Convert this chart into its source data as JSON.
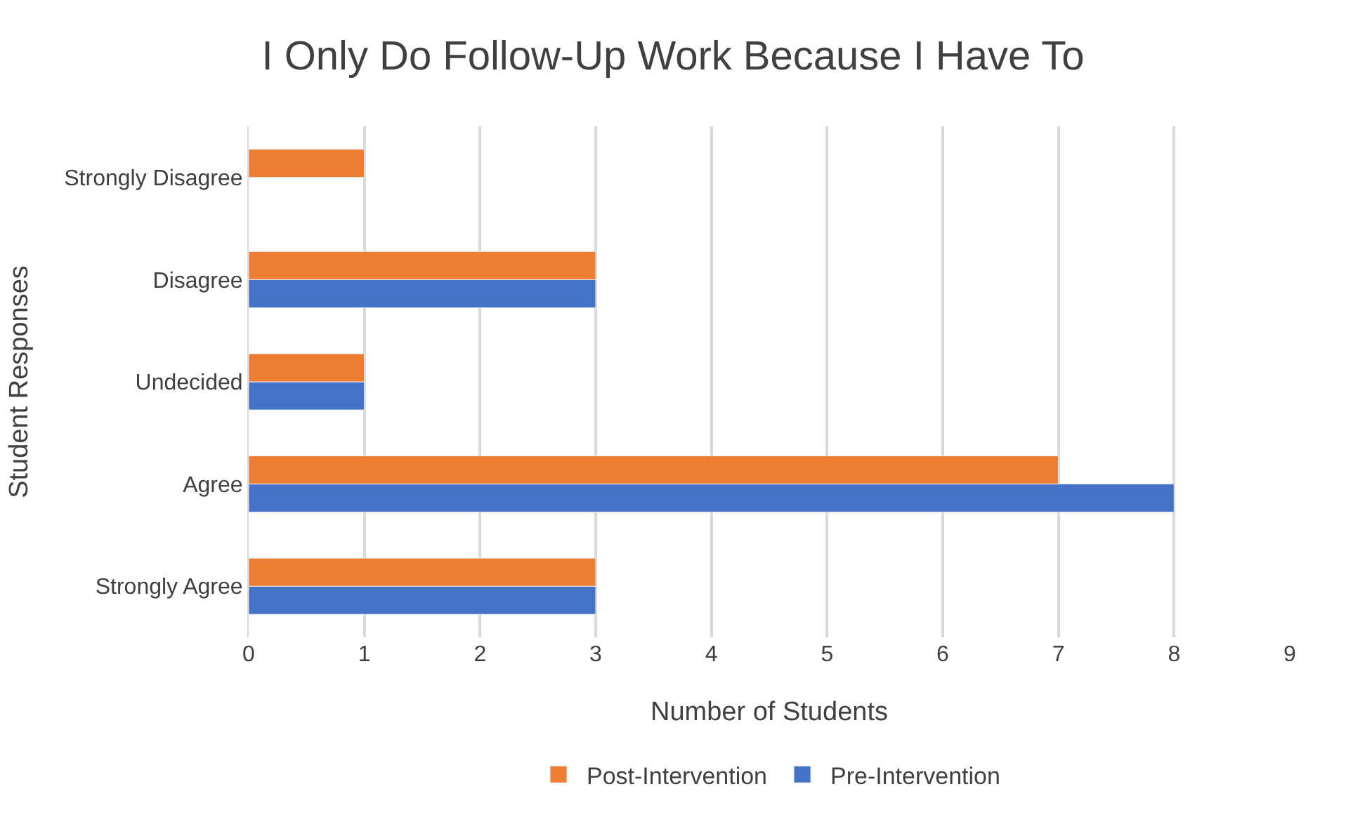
{
  "chart_data": {
    "type": "bar",
    "orientation": "horizontal",
    "title": "I Only Do Follow-Up Work Because I Have To",
    "xlabel": "Number of Students",
    "ylabel": "Student Responses",
    "categories": [
      "Strongly Disagree",
      "Disagree",
      "Undecided",
      "Agree",
      "Strongly Agree"
    ],
    "series": [
      {
        "name": "Post-Intervention",
        "color": "#ed7d31",
        "values": [
          1,
          3,
          1,
          7,
          3
        ]
      },
      {
        "name": "Pre-Intervention",
        "color": "#4472c4",
        "values": [
          null,
          3,
          1,
          8,
          3
        ]
      }
    ],
    "xlim": [
      0,
      9
    ],
    "xticks": [
      0,
      1,
      2,
      3,
      4,
      5,
      6,
      7,
      8,
      9
    ],
    "grid": "x",
    "legend": "bottom"
  }
}
